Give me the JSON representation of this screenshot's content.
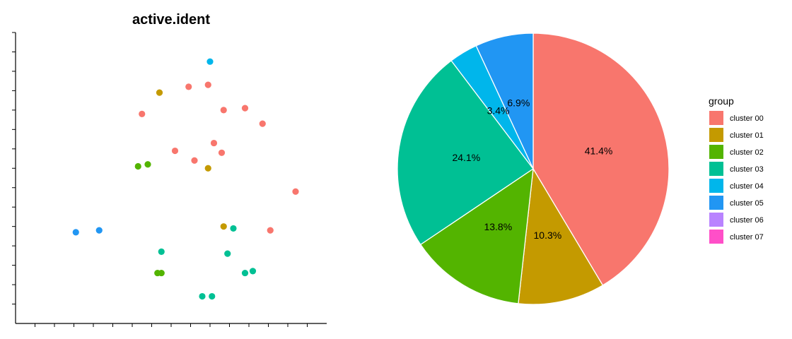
{
  "chart_data": [
    {
      "type": "scatter",
      "title": "active.ident",
      "xlabel": "",
      "ylabel": "",
      "x_ticks": 16,
      "y_ticks": 15,
      "xlim": [
        0,
        16
      ],
      "ylim": [
        0,
        15
      ],
      "points": [
        {
          "x": 10.0,
          "y": 13.5,
          "group": "cluster 04"
        },
        {
          "x": 7.4,
          "y": 11.9,
          "group": "cluster 01"
        },
        {
          "x": 8.9,
          "y": 12.2,
          "group": "cluster 00"
        },
        {
          "x": 9.9,
          "y": 12.3,
          "group": "cluster 00"
        },
        {
          "x": 10.7,
          "y": 11.0,
          "group": "cluster 00"
        },
        {
          "x": 11.8,
          "y": 11.1,
          "group": "cluster 00"
        },
        {
          "x": 6.5,
          "y": 10.8,
          "group": "cluster 00"
        },
        {
          "x": 12.7,
          "y": 10.3,
          "group": "cluster 00"
        },
        {
          "x": 10.2,
          "y": 9.3,
          "group": "cluster 00"
        },
        {
          "x": 8.2,
          "y": 8.9,
          "group": "cluster 00"
        },
        {
          "x": 10.6,
          "y": 8.8,
          "group": "cluster 00"
        },
        {
          "x": 9.2,
          "y": 8.4,
          "group": "cluster 00"
        },
        {
          "x": 6.3,
          "y": 8.1,
          "group": "cluster 02"
        },
        {
          "x": 6.8,
          "y": 8.2,
          "group": "cluster 02"
        },
        {
          "x": 9.9,
          "y": 8.0,
          "group": "cluster 01"
        },
        {
          "x": 14.4,
          "y": 6.8,
          "group": "cluster 00"
        },
        {
          "x": 3.1,
          "y": 4.7,
          "group": "cluster 05"
        },
        {
          "x": 4.3,
          "y": 4.8,
          "group": "cluster 05"
        },
        {
          "x": 10.7,
          "y": 5.0,
          "group": "cluster 01"
        },
        {
          "x": 11.2,
          "y": 4.9,
          "group": "cluster 03"
        },
        {
          "x": 13.1,
          "y": 4.8,
          "group": "cluster 00"
        },
        {
          "x": 7.5,
          "y": 3.7,
          "group": "cluster 03"
        },
        {
          "x": 10.9,
          "y": 3.6,
          "group": "cluster 03"
        },
        {
          "x": 7.3,
          "y": 2.6,
          "group": "cluster 02"
        },
        {
          "x": 7.5,
          "y": 2.6,
          "group": "cluster 02"
        },
        {
          "x": 11.8,
          "y": 2.6,
          "group": "cluster 03"
        },
        {
          "x": 12.2,
          "y": 2.7,
          "group": "cluster 03"
        },
        {
          "x": 9.6,
          "y": 1.4,
          "group": "cluster 03"
        },
        {
          "x": 10.1,
          "y": 1.4,
          "group": "cluster 03"
        }
      ]
    },
    {
      "type": "pie",
      "legend_title": "group",
      "legend_position": "right",
      "slices": [
        {
          "name": "cluster 00",
          "value": 41.4,
          "label": "41.4%"
        },
        {
          "name": "cluster 01",
          "value": 10.3,
          "label": "10.3%"
        },
        {
          "name": "cluster 02",
          "value": 13.8,
          "label": "13.8%"
        },
        {
          "name": "cluster 03",
          "value": 24.1,
          "label": "24.1%"
        },
        {
          "name": "cluster 04",
          "value": 3.4,
          "label": "3.4%"
        },
        {
          "name": "cluster 05",
          "value": 6.9,
          "label": "6.9%"
        },
        {
          "name": "cluster 06",
          "value": 0,
          "label": ""
        },
        {
          "name": "cluster 07",
          "value": 0,
          "label": ""
        }
      ]
    }
  ],
  "colors": {
    "cluster 00": "#F8766D",
    "cluster 01": "#C49A00",
    "cluster 02": "#53B400",
    "cluster 03": "#00C094",
    "cluster 04": "#00B6EB",
    "cluster 05": "#2196F3",
    "cluster 06": "#B983FF",
    "cluster 07": "#FF4FC8"
  }
}
